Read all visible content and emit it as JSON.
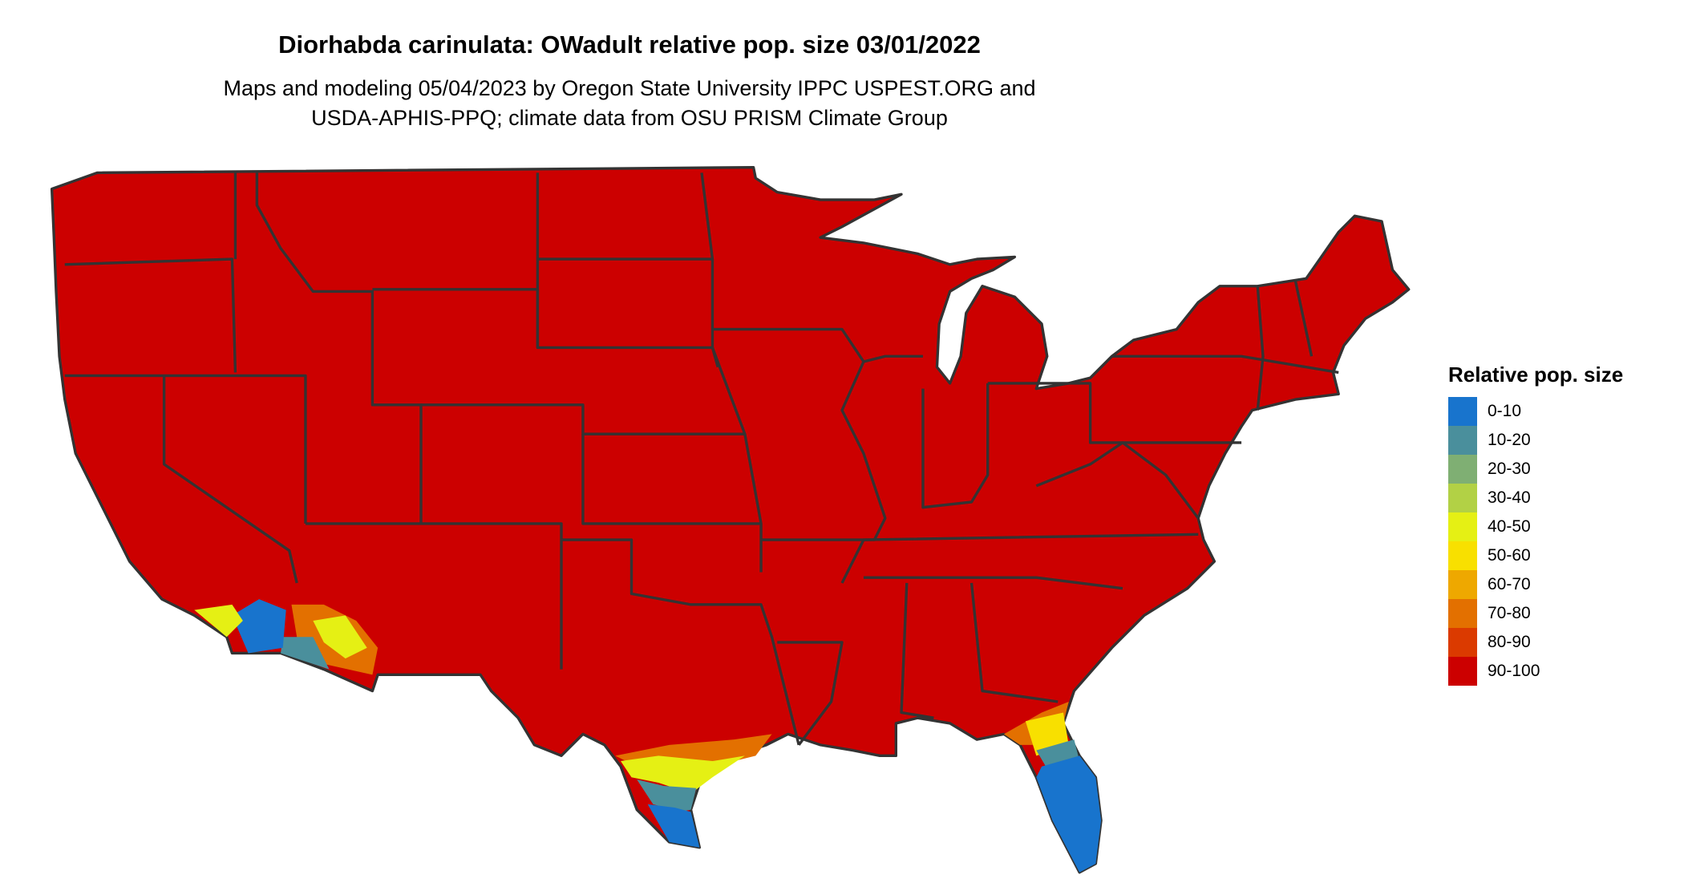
{
  "title": "Diorhabda carinulata: OWadult relative pop. size 03/01/2022",
  "subtitle_lines": [
    "Maps and modeling 05/04/2023 by Oregon State University IPPC USPEST.ORG and",
    "USDA-APHIS-PPQ; climate data from OSU PRISM Climate Group"
  ],
  "legend": {
    "title": "Relative pop. size",
    "items": [
      {
        "label": "0-10",
        "color": "#1874CD"
      },
      {
        "label": "10-20",
        "color": "#4A8F9C"
      },
      {
        "label": "20-30",
        "color": "#7FAF73"
      },
      {
        "label": "30-40",
        "color": "#B2D145"
      },
      {
        "label": "40-50",
        "color": "#E5F014"
      },
      {
        "label": "50-60",
        "color": "#F8E000"
      },
      {
        "label": "60-70",
        "color": "#EEA800"
      },
      {
        "label": "70-80",
        "color": "#E37000"
      },
      {
        "label": "80-90",
        "color": "#DB3A00"
      },
      {
        "label": "90-100",
        "color": "#CC0000"
      }
    ]
  },
  "map": {
    "region": "Contiguous United States",
    "dominant_class": "90-100",
    "border_color": "#333333"
  }
}
